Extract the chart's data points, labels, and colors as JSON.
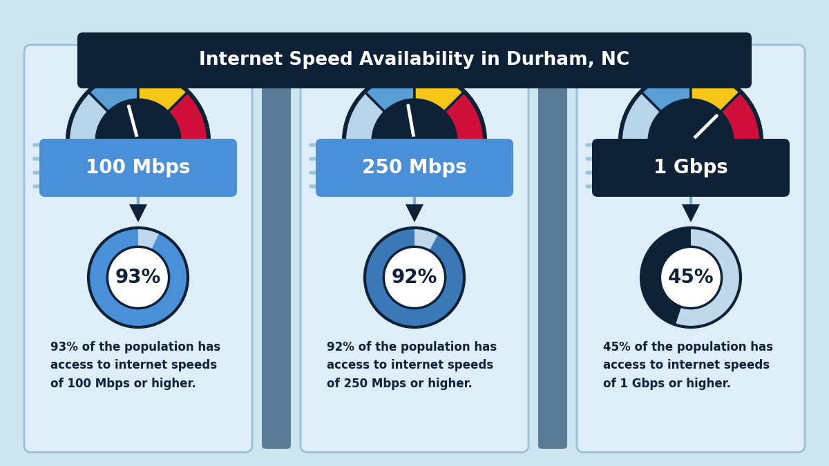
{
  "title": "Internet Speed Availability in Durham, NC",
  "title_bg": "#0d2137",
  "title_color": "#ffffff",
  "bg_color": "#cce4f0",
  "panel_bg": "#ddeef8",
  "panel_border": "#9ac0d8",
  "separator_color": "#5a7a96",
  "speeds": [
    "100 Mbps",
    "250 Mbps",
    "1 Gbps"
  ],
  "percentages": [
    93,
    92,
    45
  ],
  "descriptions": [
    "93% of the population has\naccess to internet speeds\nof 100 Mbps or higher.",
    "92% of the population has\naccess to internet speeds\nof 250 Mbps or higher.",
    "45% of the population has\naccess to internet speeds\nof 1 Gbps or higher."
  ],
  "speed_box_colors": [
    "#4a90d9",
    "#4a90d9",
    "#0d2137"
  ],
  "gauge_dark": "#0d2137",
  "gauge_seg_colors": [
    "#b8d4e8",
    "#5a9fd4",
    "#f5c518",
    "#d0103a"
  ],
  "gauge_needle_angles_deg": [
    105,
    100,
    45
  ],
  "donut_filled_colors": [
    "#4a90d9",
    "#3a78b8",
    "#0d2137"
  ],
  "donut_empty_color": "#c0d8ec",
  "donut_border_color": "#0d2137",
  "donut_text_color": "#0d2137",
  "desc_text_color": "#0d2137",
  "connector_color": "#7aaac8",
  "speed_lines_color": "#a0c4dc",
  "title_connector_color": "#7aaac8"
}
